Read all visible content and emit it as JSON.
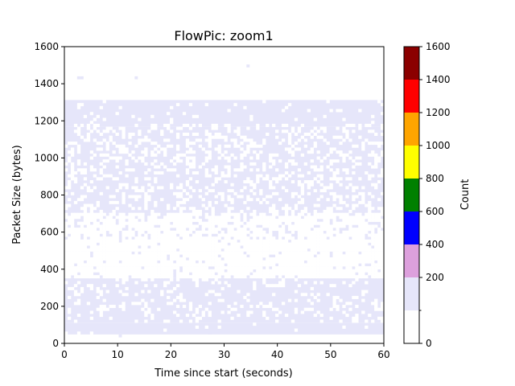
{
  "chart_data": {
    "type": "heatmap",
    "title": "FlowPic: zoom1",
    "xlabel": "Time since start (seconds)",
    "ylabel": "Packet Size (bytes)",
    "xlim": [
      0,
      60
    ],
    "ylim": [
      0,
      1600
    ],
    "x_ticks": [
      0,
      10,
      20,
      30,
      40,
      50,
      60
    ],
    "y_ticks": [
      0,
      200,
      400,
      600,
      800,
      1000,
      1200,
      1400,
      1600
    ],
    "bin_width_seconds": 0.6,
    "bin_height_bytes": 16,
    "grid": false,
    "colorbar": {
      "label": "Count",
      "range": [
        0,
        1600
      ],
      "ticks": [
        0,
        200,
        400,
        600,
        800,
        1000,
        1200,
        1400,
        1600
      ],
      "bands": [
        {
          "from": 0,
          "to": 100,
          "color": "#ffffff"
        },
        {
          "from": 100,
          "to": 400,
          "color": "#e6e6fa"
        },
        {
          "from": 400,
          "to": 600,
          "color": "#dda0dd"
        },
        {
          "from": 600,
          "to": 800,
          "color": "#0000ff"
        },
        {
          "from": 800,
          "to": 1000,
          "color": "#008000"
        },
        {
          "from": 1000,
          "to": 1200,
          "color": "#ffff00"
        },
        {
          "from": 1200,
          "to": 1400,
          "color": "#ffa500"
        },
        {
          "from": 1400,
          "to": 1600,
          "color": "#ff0000"
        },
        {
          "from": 1600,
          "to": 1800,
          "color": "#8b0000"
        }
      ]
    },
    "cells_color": "#e6e6fa",
    "cells_count_range": [
      100,
      400
    ],
    "cells": [
      {
        "x": [
          0,
          60
        ],
        "y": [
          48,
          112
        ]
      },
      {
        "x": [
          0,
          60
        ],
        "y": [
          112,
          352
        ]
      },
      {
        "x": [
          0,
          60
        ],
        "y": [
          700,
          1170
        ]
      },
      {
        "x": [
          0,
          60
        ],
        "y": [
          1170,
          1312
        ]
      },
      {
        "x": [
          0,
          60
        ],
        "y": [
          560,
          700
        ]
      },
      {
        "x": [
          0,
          60
        ],
        "y": [
          352,
          560
        ]
      },
      {
        "x": [
          2.4,
          3.0
        ],
        "y": [
          1424,
          1440
        ]
      },
      {
        "x": [
          3.0,
          3.6
        ],
        "y": [
          1424,
          1440
        ]
      },
      {
        "x": [
          13.2,
          13.8
        ],
        "y": [
          1424,
          1440
        ]
      },
      {
        "x": [
          34.2,
          34.8
        ],
        "y": [
          1488,
          1504
        ]
      },
      {
        "x": [
          27.0,
          27.6
        ],
        "y": [
          48,
          56
        ]
      },
      {
        "x": [
          10.2,
          10.8
        ],
        "y": [
          32,
          48
        ]
      }
    ]
  }
}
